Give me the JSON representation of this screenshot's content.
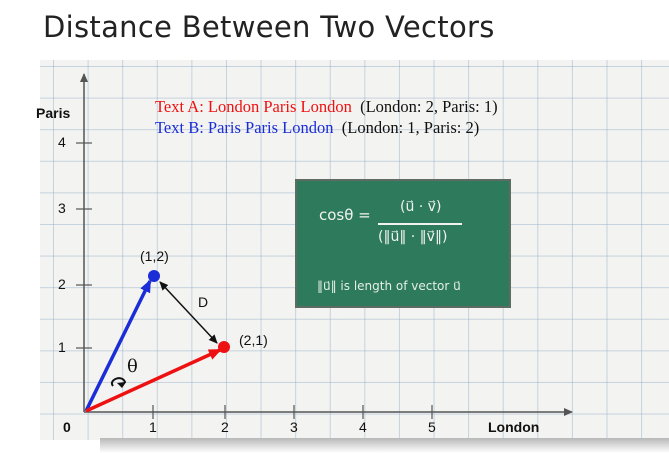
{
  "title": "Distance Between Two Vectors",
  "axes": {
    "y_label": "Paris",
    "x_label": "London",
    "origin_label": "0",
    "x_ticks": [
      "1",
      "2",
      "3",
      "4",
      "5"
    ],
    "y_ticks": [
      "1",
      "2",
      "3",
      "4"
    ]
  },
  "legend": {
    "text_a_name": "Text A: London Paris London",
    "text_a_counts": "(London: 2, Paris: 1)",
    "text_b_name": "Text B: Paris Paris London",
    "text_b_counts": "(London: 1, Paris: 2)"
  },
  "points": {
    "a_label": "(2,1)",
    "b_label": "(1,2)",
    "distance_label": "D",
    "angle_label": "θ"
  },
  "formula": {
    "lhs": "cosθ =",
    "numerator": "(u⃗ · v⃗)",
    "denominator": "(‖u⃗‖ · ‖v⃗‖)",
    "note": "‖u⃗‖ is length of vector u⃗"
  },
  "colors": {
    "vector_a": "#ee1111",
    "vector_b": "#1a2dd6",
    "chalkboard": "#2e7a5c"
  }
}
